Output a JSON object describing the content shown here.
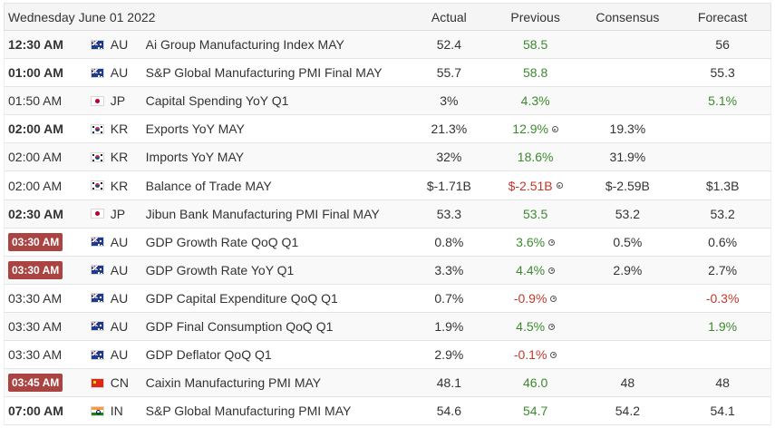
{
  "header": {
    "date": "Wednesday June 01 2022",
    "actual": "Actual",
    "previous": "Previous",
    "consensus": "Consensus",
    "forecast": "Forecast"
  },
  "colors": {
    "highlight_time": "#a94442",
    "positive": "#3c8a2e",
    "negative": "#c0392b"
  },
  "rows": [
    {
      "time": "12:30 AM",
      "time_style": "bold",
      "flag": "flag-au-icon",
      "country": "AU",
      "event": "Ai Group Manufacturing Index MAY",
      "actual": "52.4",
      "previous": "58.5",
      "previous_color": "green",
      "previous_revised": false,
      "consensus": "",
      "forecast": "56",
      "forecast_color": ""
    },
    {
      "time": "01:00 AM",
      "time_style": "bold",
      "flag": "flag-au-icon",
      "country": "AU",
      "event": "S&P Global Manufacturing PMI Final MAY",
      "actual": "55.7",
      "previous": "58.8",
      "previous_color": "green",
      "previous_revised": false,
      "consensus": "",
      "forecast": "55.3",
      "forecast_color": ""
    },
    {
      "time": "01:50 AM",
      "time_style": "normal",
      "flag": "flag-jp-icon",
      "country": "JP",
      "event": "Capital Spending YoY Q1",
      "actual": "3%",
      "previous": "4.3%",
      "previous_color": "green",
      "previous_revised": false,
      "consensus": "",
      "forecast": "5.1%",
      "forecast_color": "green"
    },
    {
      "time": "02:00 AM",
      "time_style": "bold",
      "flag": "flag-kr-icon",
      "country": "KR",
      "event": "Exports YoY MAY",
      "actual": "21.3%",
      "previous": "12.9%",
      "previous_color": "green",
      "previous_revised": true,
      "consensus": "19.3%",
      "forecast": "",
      "forecast_color": ""
    },
    {
      "time": "02:00 AM",
      "time_style": "normal",
      "flag": "flag-kr-icon",
      "country": "KR",
      "event": "Imports YoY MAY",
      "actual": "32%",
      "previous": "18.6%",
      "previous_color": "green",
      "previous_revised": false,
      "consensus": "31.9%",
      "forecast": "",
      "forecast_color": ""
    },
    {
      "time": "02:00 AM",
      "time_style": "normal",
      "flag": "flag-kr-icon",
      "country": "KR",
      "event": "Balance of Trade MAY",
      "actual": "$-1.71B",
      "previous": "$-2.51B",
      "previous_color": "red",
      "previous_revised": true,
      "consensus": "$-2.59B",
      "forecast": "$1.3B",
      "forecast_color": ""
    },
    {
      "time": "02:30 AM",
      "time_style": "bold",
      "flag": "flag-jp-icon",
      "country": "JP",
      "event": "Jibun Bank Manufacturing PMI Final MAY",
      "actual": "53.3",
      "previous": "53.5",
      "previous_color": "green",
      "previous_revised": false,
      "consensus": "53.2",
      "forecast": "53.2",
      "forecast_color": ""
    },
    {
      "time": "03:30 AM",
      "time_style": "badge",
      "flag": "flag-au-icon",
      "country": "AU",
      "event": "GDP Growth Rate QoQ Q1",
      "actual": "0.8%",
      "previous": "3.6%",
      "previous_color": "green",
      "previous_revised": true,
      "consensus": "0.5%",
      "forecast": "0.6%",
      "forecast_color": ""
    },
    {
      "time": "03:30 AM",
      "time_style": "badge",
      "flag": "flag-au-icon",
      "country": "AU",
      "event": "GDP Growth Rate YoY Q1",
      "actual": "3.3%",
      "previous": "4.4%",
      "previous_color": "green",
      "previous_revised": true,
      "consensus": "2.9%",
      "forecast": "2.7%",
      "forecast_color": ""
    },
    {
      "time": "03:30 AM",
      "time_style": "normal",
      "flag": "flag-au-icon",
      "country": "AU",
      "event": "GDP Capital Expenditure QoQ Q1",
      "actual": "0.7%",
      "previous": "-0.9%",
      "previous_color": "red",
      "previous_revised": true,
      "consensus": "",
      "forecast": "-0.3%",
      "forecast_color": "red"
    },
    {
      "time": "03:30 AM",
      "time_style": "normal",
      "flag": "flag-au-icon",
      "country": "AU",
      "event": "GDP Final Consumption QoQ Q1",
      "actual": "1.9%",
      "previous": "4.5%",
      "previous_color": "green",
      "previous_revised": true,
      "consensus": "",
      "forecast": "1.9%",
      "forecast_color": "green"
    },
    {
      "time": "03:30 AM",
      "time_style": "normal",
      "flag": "flag-au-icon",
      "country": "AU",
      "event": "GDP Deflator QoQ Q1",
      "actual": "2.9%",
      "previous": "-0.1%",
      "previous_color": "red",
      "previous_revised": true,
      "consensus": "",
      "forecast": "",
      "forecast_color": ""
    },
    {
      "time": "03:45 AM",
      "time_style": "badge",
      "flag": "flag-cn-icon",
      "country": "CN",
      "event": "Caixin Manufacturing PMI MAY",
      "actual": "48.1",
      "previous": "46.0",
      "previous_color": "green",
      "previous_revised": false,
      "consensus": "48",
      "forecast": "48",
      "forecast_color": ""
    },
    {
      "time": "07:00 AM",
      "time_style": "bold",
      "flag": "flag-in-icon",
      "country": "IN",
      "event": "S&P Global Manufacturing PMI MAY",
      "actual": "54.6",
      "previous": "54.7",
      "previous_color": "green",
      "previous_revised": false,
      "consensus": "54.2",
      "forecast": "54.1",
      "forecast_color": ""
    }
  ]
}
